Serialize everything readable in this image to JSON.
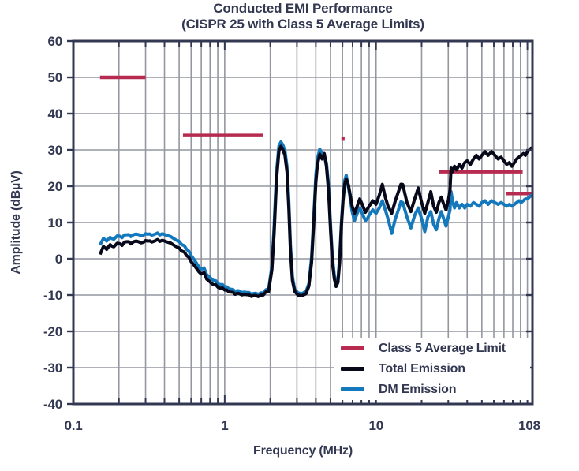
{
  "colors": {
    "background": "#ffffff",
    "navy_text": "#333852",
    "grid_gray": "#94979f",
    "limit_crimson": "#b72b50",
    "total_black": "#07091a",
    "dm_blue": "#1478bd"
  },
  "title": {
    "line1": "Conducted EMI Performance",
    "line2": "(CISPR 25 with Class 5 Average Limits)"
  },
  "legend": {
    "items": [
      {
        "label": "Class 5 Average Limit",
        "color": "#b72b50"
      },
      {
        "label": "Total Emission",
        "color": "#07091a"
      },
      {
        "label": "DM Emission",
        "color": "#1478bd"
      }
    ]
  },
  "chart_data": {
    "type": "line",
    "title": "Conducted EMI Performance (CISPR 25 with Class 5 Average Limits)",
    "xlabel": "Frequency (MHz)",
    "ylabel": "Amplitude (dBµV)",
    "x_scale": "log",
    "xlim": [
      0.1,
      108
    ],
    "ylim": [
      -40,
      60
    ],
    "x_ticks": [
      {
        "label": "0.1",
        "f": 0.1
      },
      {
        "label": "1",
        "f": 1
      },
      {
        "label": "10",
        "f": 10
      },
      {
        "label": "108",
        "f": 108
      }
    ],
    "y_ticks": [
      60,
      50,
      40,
      30,
      20,
      10,
      0,
      -10,
      -20,
      -30,
      -40
    ],
    "grid": "gray minor log grid on x, 10 dB grid on y",
    "legend_position": "lower right, white box inside plot",
    "series": [
      {
        "name": "Class 5 Average Limit",
        "style": "horizontal segments",
        "color": "#b72b50",
        "segments": [
          {
            "f_mhz": [
              0.15,
              0.3
            ],
            "dbuv": 50
          },
          {
            "f_mhz": [
              0.53,
              1.8
            ],
            "dbuv": 34
          },
          {
            "f_mhz": [
              5.9,
              6.2
            ],
            "dbuv": 33
          },
          {
            "f_mhz": [
              26,
              93
            ],
            "dbuv": 24
          },
          {
            "f_mhz": [
              72,
              108
            ],
            "dbuv": 18
          }
        ]
      },
      {
        "name": "Total Emission",
        "color": "#07091a",
        "points": [
          [
            0.15,
            1.2
          ],
          [
            0.158,
            3.4
          ],
          [
            0.166,
            2.6
          ],
          [
            0.175,
            3.9
          ],
          [
            0.185,
            3.3
          ],
          [
            0.195,
            4.3
          ],
          [
            0.21,
            3.7
          ],
          [
            0.225,
            4.7
          ],
          [
            0.24,
            4.1
          ],
          [
            0.26,
            4.9
          ],
          [
            0.28,
            4.4
          ],
          [
            0.3,
            5.0
          ],
          [
            0.33,
            4.6
          ],
          [
            0.36,
            5.3
          ],
          [
            0.4,
            4.9
          ],
          [
            0.44,
            4.3
          ],
          [
            0.48,
            3.3
          ],
          [
            0.52,
            2.1
          ],
          [
            0.56,
            0.9
          ],
          [
            0.6,
            -0.8
          ],
          [
            0.65,
            -2.6
          ],
          [
            0.7,
            -4.2
          ],
          [
            0.73,
            -3.8
          ],
          [
            0.76,
            -5.6
          ],
          [
            0.82,
            -6.8
          ],
          [
            0.9,
            -7.8
          ],
          [
            1.0,
            -8.6
          ],
          [
            1.1,
            -9.2
          ],
          [
            1.25,
            -9.6
          ],
          [
            1.4,
            -9.9
          ],
          [
            1.6,
            -10.1
          ],
          [
            1.8,
            -10.0
          ],
          [
            1.95,
            -9.0
          ],
          [
            2.05,
            -3.0
          ],
          [
            2.12,
            7.0
          ],
          [
            2.2,
            22.0
          ],
          [
            2.28,
            29.5
          ],
          [
            2.35,
            31.0
          ],
          [
            2.42,
            30.2
          ],
          [
            2.5,
            28.5
          ],
          [
            2.58,
            24.0
          ],
          [
            2.65,
            14.0
          ],
          [
            2.72,
            2.0
          ],
          [
            2.8,
            -6.0
          ],
          [
            2.9,
            -9.0
          ],
          [
            3.05,
            -10.0
          ],
          [
            3.25,
            -10.2
          ],
          [
            3.45,
            -9.6
          ],
          [
            3.6,
            -7.5
          ],
          [
            3.75,
            -1.0
          ],
          [
            3.9,
            12.0
          ],
          [
            4.0,
            21.0
          ],
          [
            4.1,
            26.0
          ],
          [
            4.25,
            28.8
          ],
          [
            4.4,
            27.5
          ],
          [
            4.55,
            29.0
          ],
          [
            4.7,
            25.5
          ],
          [
            4.85,
            19.0
          ],
          [
            5.0,
            8.0
          ],
          [
            5.15,
            -1.0
          ],
          [
            5.3,
            -5.5
          ],
          [
            5.45,
            -7.6
          ],
          [
            5.6,
            -6.5
          ],
          [
            5.75,
            -1.0
          ],
          [
            5.9,
            9.0
          ],
          [
            6.05,
            16.0
          ],
          [
            6.2,
            20.5
          ],
          [
            6.35,
            22.0
          ],
          [
            6.55,
            20.5
          ],
          [
            6.75,
            17.5
          ],
          [
            6.95,
            14.5
          ],
          [
            7.2,
            12.5
          ],
          [
            7.5,
            14.5
          ],
          [
            7.8,
            16.5
          ],
          [
            8.1,
            15.0
          ],
          [
            8.5,
            12.8
          ],
          [
            9.0,
            14.5
          ],
          [
            9.5,
            16.0
          ],
          [
            10.0,
            15.0
          ],
          [
            10.5,
            17.5
          ],
          [
            11.0,
            20.5
          ],
          [
            11.5,
            17.0
          ],
          [
            12.0,
            14.5
          ],
          [
            12.7,
            12.5
          ],
          [
            13.4,
            16.0
          ],
          [
            14.2,
            19.0
          ],
          [
            15.0,
            20.5
          ],
          [
            16.0,
            15.5
          ],
          [
            17.0,
            13.0
          ],
          [
            18.0,
            16.5
          ],
          [
            19.0,
            19.5
          ],
          [
            20.0,
            15.5
          ],
          [
            21.0,
            12.5
          ],
          [
            22.0,
            15.5
          ],
          [
            23.0,
            18.5
          ],
          [
            24.0,
            14.5
          ],
          [
            25.0,
            12.8
          ],
          [
            26.0,
            15.5
          ],
          [
            27.0,
            17.0
          ],
          [
            28.0,
            15.0
          ],
          [
            29.0,
            13.5
          ],
          [
            30.0,
            16.0
          ],
          [
            30.8,
            19.0
          ],
          [
            31.3,
            25.0
          ],
          [
            32,
            24.0
          ],
          [
            33,
            25.5
          ],
          [
            34,
            24.5
          ],
          [
            35.5,
            26.0
          ],
          [
            37,
            25.0
          ],
          [
            38.5,
            26.5
          ],
          [
            40,
            27.0
          ],
          [
            42,
            26.0
          ],
          [
            44,
            27.5
          ],
          [
            46,
            28.5
          ],
          [
            48,
            27.5
          ],
          [
            50,
            28.5
          ],
          [
            52.5,
            29.5
          ],
          [
            55,
            28.5
          ],
          [
            58,
            29.5
          ],
          [
            61,
            28.5
          ],
          [
            64,
            27.5
          ],
          [
            67,
            28.0
          ],
          [
            70,
            27.0
          ],
          [
            73,
            26.0
          ],
          [
            76,
            26.5
          ],
          [
            79,
            25.5
          ],
          [
            82,
            26.5
          ],
          [
            85,
            27.5
          ],
          [
            88,
            28.0
          ],
          [
            91,
            28.5
          ],
          [
            94,
            29.0
          ],
          [
            97,
            28.5
          ],
          [
            100,
            29.5
          ],
          [
            103,
            30.0
          ],
          [
            106,
            30.5
          ],
          [
            108,
            30.2
          ]
        ]
      },
      {
        "name": "DM Emission",
        "color": "#1478bd",
        "points": [
          [
            0.15,
            3.8
          ],
          [
            0.158,
            5.6
          ],
          [
            0.166,
            4.9
          ],
          [
            0.175,
            5.9
          ],
          [
            0.185,
            5.4
          ],
          [
            0.195,
            6.3
          ],
          [
            0.21,
            5.8
          ],
          [
            0.225,
            6.6
          ],
          [
            0.24,
            6.1
          ],
          [
            0.26,
            6.8
          ],
          [
            0.28,
            6.4
          ],
          [
            0.3,
            6.9
          ],
          [
            0.33,
            6.5
          ],
          [
            0.36,
            7.1
          ],
          [
            0.4,
            6.7
          ],
          [
            0.44,
            6.1
          ],
          [
            0.48,
            5.1
          ],
          [
            0.52,
            3.9
          ],
          [
            0.56,
            2.6
          ],
          [
            0.6,
            0.9
          ],
          [
            0.65,
            -1.2
          ],
          [
            0.7,
            -2.9
          ],
          [
            0.73,
            -2.5
          ],
          [
            0.76,
            -4.4
          ],
          [
            0.82,
            -5.6
          ],
          [
            0.9,
            -6.8
          ],
          [
            1.0,
            -7.7
          ],
          [
            1.1,
            -8.4
          ],
          [
            1.25,
            -8.9
          ],
          [
            1.4,
            -9.3
          ],
          [
            1.6,
            -9.5
          ],
          [
            1.8,
            -9.4
          ],
          [
            1.95,
            -8.4
          ],
          [
            2.05,
            -2.0
          ],
          [
            2.12,
            9.0
          ],
          [
            2.2,
            24.0
          ],
          [
            2.28,
            31.0
          ],
          [
            2.35,
            32.2
          ],
          [
            2.42,
            31.4
          ],
          [
            2.5,
            29.8
          ],
          [
            2.58,
            25.5
          ],
          [
            2.65,
            16.0
          ],
          [
            2.72,
            4.0
          ],
          [
            2.8,
            -5.0
          ],
          [
            2.9,
            -8.4
          ],
          [
            3.05,
            -9.4
          ],
          [
            3.25,
            -9.6
          ],
          [
            3.45,
            -9.0
          ],
          [
            3.6,
            -6.8
          ],
          [
            3.75,
            0.5
          ],
          [
            3.9,
            14.0
          ],
          [
            4.0,
            23.0
          ],
          [
            4.1,
            27.5
          ],
          [
            4.25,
            30.2
          ],
          [
            4.4,
            28.8
          ],
          [
            4.55,
            27.8
          ],
          [
            4.7,
            26.5
          ],
          [
            4.85,
            20.5
          ],
          [
            5.0,
            9.5
          ],
          [
            5.15,
            0.5
          ],
          [
            5.3,
            -4.5
          ],
          [
            5.45,
            -7.0
          ],
          [
            5.6,
            -5.8
          ],
          [
            5.75,
            0.5
          ],
          [
            5.9,
            10.0
          ],
          [
            6.05,
            17.0
          ],
          [
            6.2,
            21.5
          ],
          [
            6.35,
            23.0
          ],
          [
            6.55,
            20.0
          ],
          [
            6.75,
            16.5
          ],
          [
            6.95,
            13.0
          ],
          [
            7.2,
            10.5
          ],
          [
            7.5,
            12.5
          ],
          [
            7.8,
            14.0
          ],
          [
            8.1,
            12.5
          ],
          [
            8.5,
            10.5
          ],
          [
            9.0,
            12.0
          ],
          [
            9.5,
            13.5
          ],
          [
            10.0,
            12.5
          ],
          [
            10.5,
            14.0
          ],
          [
            11.0,
            16.0
          ],
          [
            11.5,
            13.5
          ],
          [
            12.0,
            11.0
          ],
          [
            12.7,
            7.0
          ],
          [
            13.4,
            11.0
          ],
          [
            14.2,
            14.0
          ],
          [
            15.0,
            15.5
          ],
          [
            16.0,
            11.5
          ],
          [
            17.0,
            8.5
          ],
          [
            18.0,
            12.0
          ],
          [
            19.0,
            14.0
          ],
          [
            20.0,
            11.0
          ],
          [
            21.0,
            7.5
          ],
          [
            22.0,
            11.5
          ],
          [
            23.0,
            13.0
          ],
          [
            24.0,
            9.5
          ],
          [
            25.0,
            8.0
          ],
          [
            26.0,
            11.0
          ],
          [
            27.0,
            13.0
          ],
          [
            28.0,
            11.0
          ],
          [
            29.0,
            9.0
          ],
          [
            30.0,
            11.5
          ],
          [
            30.8,
            13.5
          ],
          [
            31.3,
            18.5
          ],
          [
            32,
            16.0
          ],
          [
            33,
            14.0
          ],
          [
            34,
            15.5
          ],
          [
            35.5,
            14.0
          ],
          [
            37,
            15.0
          ],
          [
            38.5,
            14.0
          ],
          [
            40,
            15.0
          ],
          [
            42,
            14.5
          ],
          [
            44,
            15.5
          ],
          [
            46,
            15.0
          ],
          [
            48,
            14.5
          ],
          [
            50,
            15.5
          ],
          [
            52.5,
            16.0
          ],
          [
            55,
            15.0
          ],
          [
            58,
            16.0
          ],
          [
            61,
            15.5
          ],
          [
            64,
            15.0
          ],
          [
            67,
            15.5
          ],
          [
            70,
            15.0
          ],
          [
            73,
            14.5
          ],
          [
            76,
            15.0
          ],
          [
            79,
            14.5
          ],
          [
            82,
            15.0
          ],
          [
            85,
            15.5
          ],
          [
            88,
            16.0
          ],
          [
            91,
            15.5
          ],
          [
            94,
            16.0
          ],
          [
            97,
            16.5
          ],
          [
            100,
            16.5
          ],
          [
            103,
            17.0
          ],
          [
            106,
            17.5
          ],
          [
            108,
            17.5
          ]
        ]
      }
    ]
  }
}
